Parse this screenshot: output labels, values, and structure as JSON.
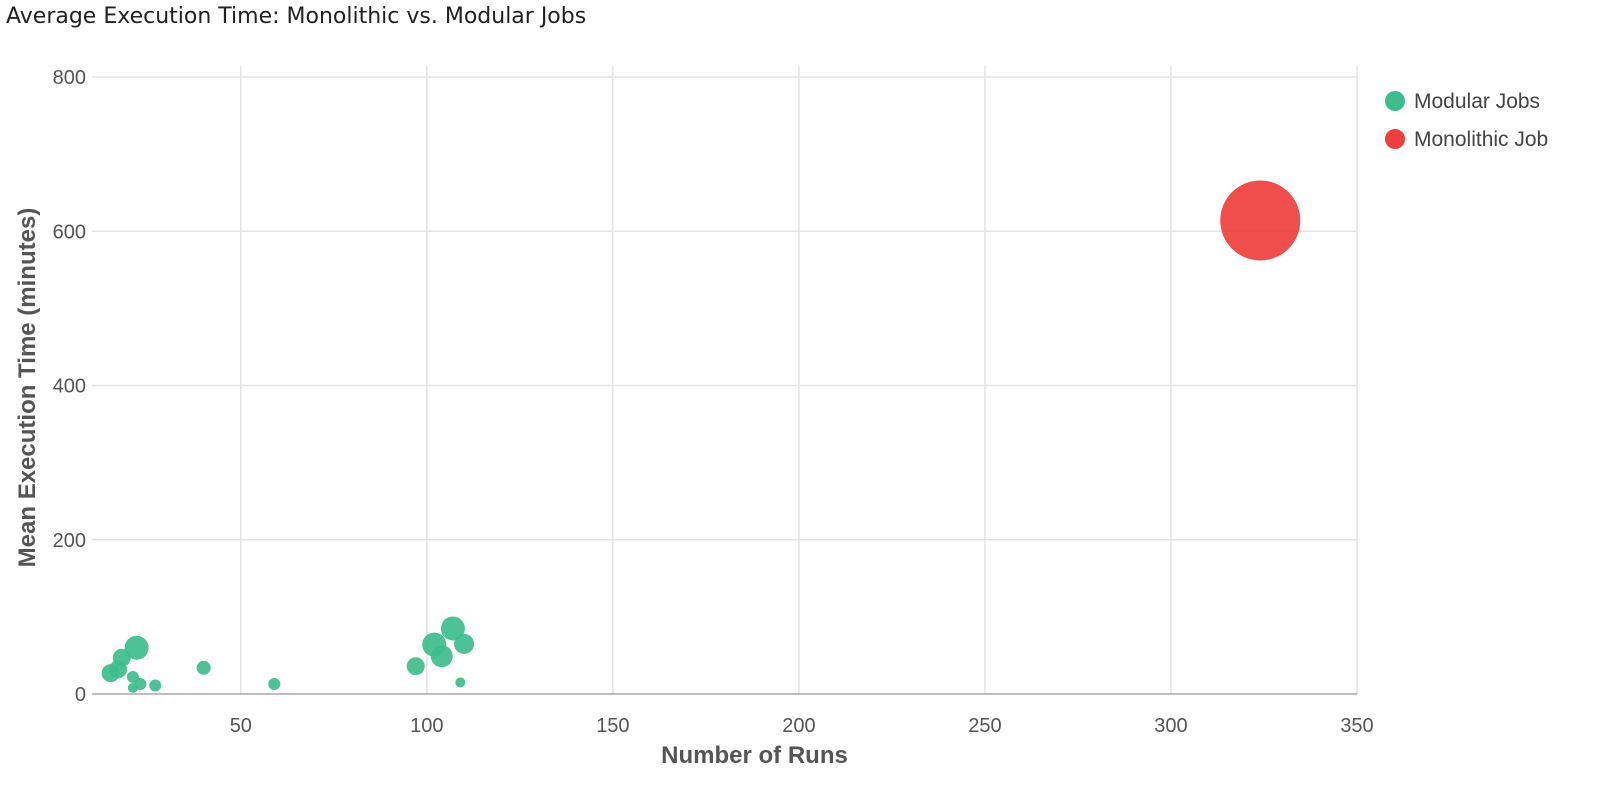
{
  "chart_data": {
    "type": "scatter",
    "title": "Average Execution Time: Monolithic vs. Modular Jobs",
    "xlabel": "Number of Runs",
    "ylabel": "Mean Execution Time (minutes)",
    "xlim": [
      10,
      350
    ],
    "ylim": [
      0,
      800
    ],
    "x_ticks": [
      50,
      100,
      150,
      200,
      250,
      300,
      350
    ],
    "y_ticks": [
      0,
      200,
      400,
      600,
      800
    ],
    "grid": true,
    "legend_position": "top-right",
    "series": [
      {
        "name": "Modular Jobs",
        "color": "#3dbd8d",
        "points": [
          {
            "x": 15,
            "y": 27,
            "size": 9
          },
          {
            "x": 17,
            "y": 32,
            "size": 9
          },
          {
            "x": 18,
            "y": 47,
            "size": 9
          },
          {
            "x": 21,
            "y": 22,
            "size": 6
          },
          {
            "x": 21,
            "y": 8,
            "size": 5
          },
          {
            "x": 22,
            "y": 60,
            "size": 12
          },
          {
            "x": 23,
            "y": 13,
            "size": 6
          },
          {
            "x": 27,
            "y": 11,
            "size": 6
          },
          {
            "x": 40,
            "y": 34,
            "size": 7
          },
          {
            "x": 59,
            "y": 13,
            "size": 6
          },
          {
            "x": 97,
            "y": 36,
            "size": 9
          },
          {
            "x": 102,
            "y": 64,
            "size": 12
          },
          {
            "x": 104,
            "y": 49,
            "size": 11
          },
          {
            "x": 107,
            "y": 85,
            "size": 12
          },
          {
            "x": 109,
            "y": 15,
            "size": 5
          },
          {
            "x": 110,
            "y": 65,
            "size": 10
          }
        ]
      },
      {
        "name": "Monolithic Job",
        "color": "#ef3e3e",
        "points": [
          {
            "x": 324,
            "y": 614,
            "size": 40
          }
        ]
      }
    ]
  }
}
